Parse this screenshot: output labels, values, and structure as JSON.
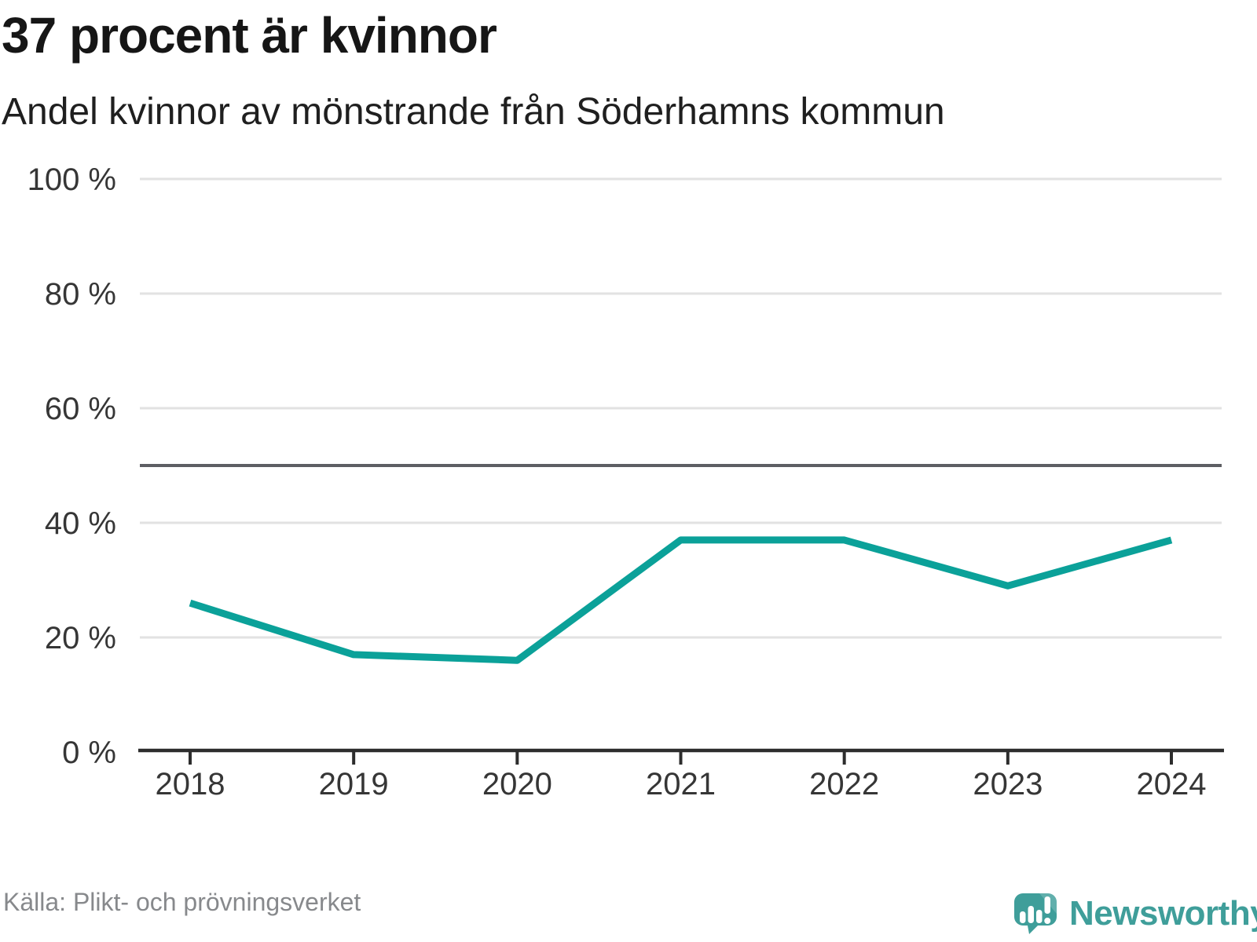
{
  "header": {
    "title": "37 procent är kvinnor",
    "subtitle": "Andel kvinnor av mönstrande från Söderhamns kommun"
  },
  "chart_data": {
    "type": "line",
    "categories": [
      "2018",
      "2019",
      "2020",
      "2021",
      "2022",
      "2023",
      "2024"
    ],
    "values": [
      26,
      17,
      16,
      37,
      37,
      29,
      37
    ],
    "series_name": "Andel kvinnor av mönstrande",
    "xlabel": "",
    "ylabel": "",
    "ylim": [
      0,
      100
    ],
    "yticks": [
      0,
      20,
      40,
      60,
      80,
      100
    ],
    "ytick_labels": [
      "0 %",
      "20 %",
      "40 %",
      "60 %",
      "80 %",
      "100 %"
    ],
    "grid": true,
    "legend": false,
    "reference_line": {
      "value": 50,
      "color": "#5d5e63"
    },
    "line_color": "#0ba199",
    "grid_color": "#e2e2e2",
    "axis_color": "#2d2d2d"
  },
  "footer": {
    "source": "Källa: Plikt- och prövningsverket",
    "brand": "Newsworthy",
    "brand_color": "#3f9e9a"
  }
}
